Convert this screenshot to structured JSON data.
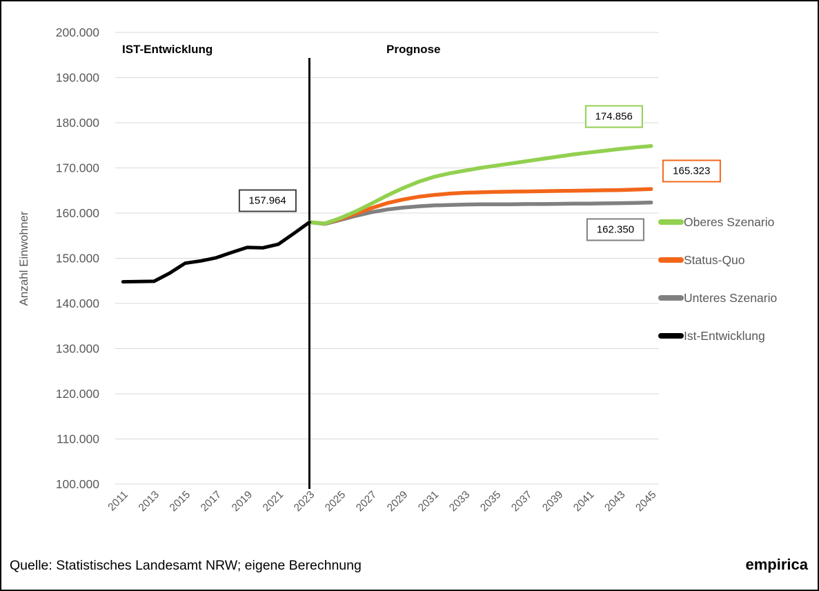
{
  "zones": {
    "left": "IST-Entwicklung",
    "right": "Prognose"
  },
  "footer": {
    "source": "Quelle: Statistisches Landesamt NRW; eigene Berechnung",
    "logo": "empirica"
  },
  "colors": {
    "grid": "#d9d9d9",
    "axis_text": "#595959",
    "divider": "#000000",
    "green": "#92d050",
    "orange": "#f2661a",
    "gray": "#808080",
    "black": "#000000"
  },
  "chart_data": {
    "type": "line",
    "title": "",
    "xlabel": "",
    "ylabel": "Anzahl Einwohner",
    "ylim": [
      100000,
      200000
    ],
    "grid": true,
    "divider_year": 2023,
    "yticks": [
      {
        "value": 100000,
        "label": "100.000"
      },
      {
        "value": 110000,
        "label": "110.000"
      },
      {
        "value": 120000,
        "label": "120.000"
      },
      {
        "value": 130000,
        "label": "130.000"
      },
      {
        "value": 140000,
        "label": "140.000"
      },
      {
        "value": 150000,
        "label": "150.000"
      },
      {
        "value": 160000,
        "label": "160.000"
      },
      {
        "value": 170000,
        "label": "170.000"
      },
      {
        "value": 180000,
        "label": "180.000"
      },
      {
        "value": 190000,
        "label": "190.000"
      },
      {
        "value": 200000,
        "label": "200.000"
      }
    ],
    "x_range": [
      2011,
      2045
    ],
    "xticks": [
      "2011",
      "2013",
      "2015",
      "2017",
      "2019",
      "2021",
      "2023",
      "2025",
      "2027",
      "2029",
      "2031",
      "2033",
      "2035",
      "2037",
      "2039",
      "2041",
      "2043",
      "2045"
    ],
    "series": [
      {
        "name": "Unteres Szenario",
        "color": "#808080",
        "start_year": 2023,
        "values": [
          157964,
          157600,
          158500,
          159400,
          160200,
          160800,
          161200,
          161500,
          161700,
          161800,
          161900,
          161950,
          161950,
          161950,
          162000,
          162000,
          162050,
          162100,
          162100,
          162150,
          162200,
          162250,
          162350
        ]
      },
      {
        "name": "Status-Quo",
        "color": "#f2661a",
        "start_year": 2023,
        "values": [
          157964,
          157700,
          158700,
          159900,
          161100,
          162200,
          163000,
          163600,
          164000,
          164300,
          164500,
          164600,
          164700,
          164750,
          164800,
          164850,
          164900,
          164950,
          165000,
          165050,
          165100,
          165200,
          165323
        ]
      },
      {
        "name": "Oberes Szenario",
        "color": "#92d050",
        "start_year": 2023,
        "values": [
          157964,
          157700,
          158900,
          160400,
          162100,
          163900,
          165500,
          166900,
          168000,
          168800,
          169400,
          170000,
          170500,
          171000,
          171500,
          172000,
          172500,
          173000,
          173400,
          173800,
          174200,
          174550,
          174856
        ]
      },
      {
        "name": "Ist-Entwicklung",
        "color": "#000000",
        "start_year": 2011,
        "values": [
          144800,
          144850,
          144900,
          146700,
          148900,
          149400,
          150100,
          151300,
          152400,
          152300,
          153100,
          155500,
          157964
        ]
      }
    ],
    "annotations": [
      {
        "text": "157.964",
        "border_color": "#404040",
        "anchor_year": 2020.3,
        "anchor_value": 162700
      },
      {
        "text": "174.856",
        "border_color": "#92d050",
        "anchor_year": 2042.6,
        "anchor_value": 181400
      },
      {
        "text": "165.323",
        "border_color": "#f2661a",
        "anchor_year": 2047.6,
        "anchor_value": 169300
      },
      {
        "text": "162.350",
        "border_color": "#7f7f7f",
        "anchor_year": 2042.7,
        "anchor_value": 156300
      }
    ],
    "legend": {
      "position": "right",
      "entries": [
        {
          "label": "Oberes Szenario",
          "color": "#92d050"
        },
        {
          "label": "Status-Quo",
          "color": "#f2661a"
        },
        {
          "label": "Unteres Szenario",
          "color": "#808080"
        },
        {
          "label": "Ist-Entwicklung",
          "color": "#000000"
        }
      ]
    }
  }
}
